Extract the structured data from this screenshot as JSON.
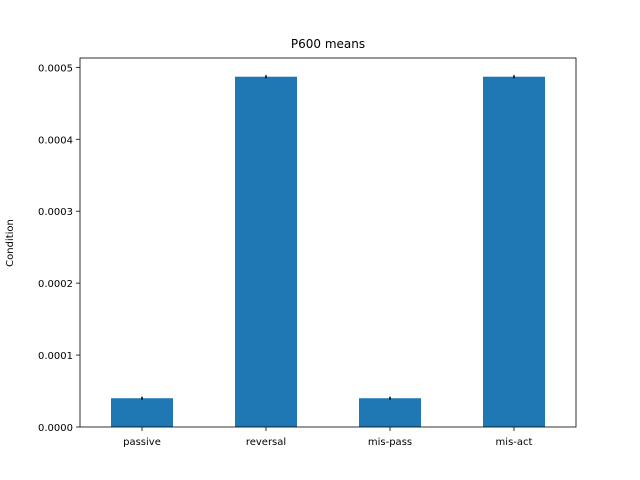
{
  "chart_data": {
    "type": "bar",
    "title": "P600 means",
    "xlabel": "",
    "ylabel": "Condition",
    "categories": [
      "passive",
      "reversal",
      "mis-pass",
      "mis-act"
    ],
    "values": [
      4e-05,
      0.000487,
      4e-05,
      0.000487
    ],
    "errors": [
      5e-07,
      1.5e-06,
      1e-06,
      1.5e-06
    ],
    "ylim": [
      0,
      0.000513
    ],
    "yticks": [
      0.0,
      0.0001,
      0.0002,
      0.0003,
      0.0004,
      0.0005
    ],
    "ytick_labels": [
      "0.0000",
      "0.0001",
      "0.0002",
      "0.0003",
      "0.0004",
      "0.0005"
    ],
    "grid": false,
    "legend": "none",
    "bar_color": "#1f77b4",
    "error_color": "#000000"
  }
}
